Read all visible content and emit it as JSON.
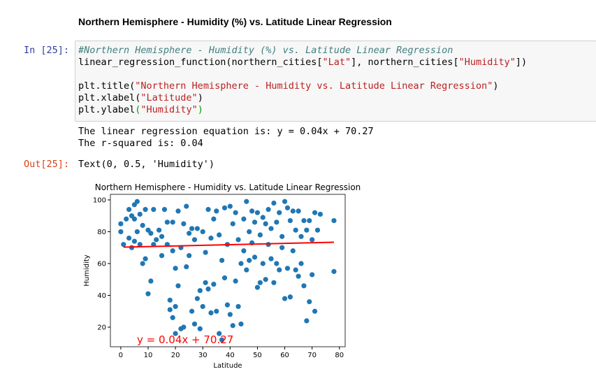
{
  "heading": "Northern Hemisphere - Humidity (%) vs. Latitude Linear Regression",
  "input_prompt": "In [25]:",
  "code": [
    [
      {
        "t": "#Northern Hemisphere - Humidity (%) vs. Latitude Linear Regression",
        "c": "#408080",
        "italic": true
      }
    ],
    [
      {
        "t": "linear_regression_function(northern_cities[",
        "c": "#000000"
      },
      {
        "t": "\"Lat\"",
        "c": "#BA2121"
      },
      {
        "t": "], northern_cities[",
        "c": "#000000"
      },
      {
        "t": "\"Humidity\"",
        "c": "#BA2121"
      },
      {
        "t": "])",
        "c": "#000000"
      }
    ],
    [],
    [
      {
        "t": "plt.title(",
        "c": "#000000"
      },
      {
        "t": "\"Northern Hemisphere - Humidity vs. Latitude Linear Regression\"",
        "c": "#BA2121"
      },
      {
        "t": ")",
        "c": "#000000"
      }
    ],
    [
      {
        "t": "plt.xlabel(",
        "c": "#000000"
      },
      {
        "t": "\"Latitude\"",
        "c": "#BA2121"
      },
      {
        "t": ")",
        "c": "#000000"
      }
    ],
    [
      {
        "t": "plt.ylabel",
        "c": "#000000"
      },
      {
        "t": "(",
        "c": "#00a000"
      },
      {
        "t": "\"Humidity\"",
        "c": "#BA2121"
      },
      {
        "t": ")",
        "c": "#00a000"
      }
    ]
  ],
  "stdout": [
    "The linear regression equation is: y = 0.04x + 70.27",
    "The r-squared is: 0.04"
  ],
  "output_prompt": "Out[25]:",
  "output_text": "Text(0, 0.5, 'Humidity')",
  "chart_data": {
    "type": "scatter",
    "title": "Northern Hemisphere - Humidity vs. Latitude Linear Regression",
    "x_label": "Latitude",
    "y_label": "Humidity",
    "color": "#1f77b4",
    "xlim": [
      -3.8,
      82.1
    ],
    "ylim": [
      7.7,
      103.5
    ],
    "xticks": [
      0,
      10,
      20,
      30,
      40,
      50,
      60,
      70,
      80
    ],
    "yticks": [
      20,
      40,
      60,
      80,
      100
    ],
    "x": [
      0,
      0,
      1,
      2,
      3,
      3,
      4,
      4,
      5,
      5,
      5,
      6,
      6,
      7,
      7,
      8,
      8,
      9,
      9,
      10,
      10,
      11,
      11,
      12,
      12,
      13,
      14,
      15,
      15,
      16,
      17,
      17,
      18,
      18,
      19,
      19,
      19,
      20,
      20,
      20,
      21,
      21,
      22,
      22,
      23,
      23,
      24,
      24,
      25,
      25,
      26,
      26,
      27,
      27,
      28,
      28,
      29,
      29,
      30,
      30,
      31,
      31,
      32,
      32,
      33,
      33,
      34,
      34,
      35,
      35,
      36,
      36,
      37,
      37,
      38,
      38,
      39,
      39,
      40,
      40,
      41,
      41,
      42,
      42,
      43,
      43,
      44,
      44,
      45,
      45,
      46,
      46,
      47,
      47,
      48,
      48,
      49,
      49,
      50,
      50,
      51,
      51,
      52,
      52,
      53,
      53,
      54,
      54,
      55,
      55,
      56,
      56,
      57,
      57,
      58,
      58,
      59,
      59,
      60,
      60,
      61,
      61,
      62,
      62,
      63,
      63,
      64,
      64,
      65,
      65,
      66,
      66,
      67,
      67,
      68,
      68,
      69,
      69,
      70,
      70,
      71,
      71,
      72,
      73,
      78,
      78
    ],
    "values": [
      85,
      80,
      72,
      88,
      94,
      76,
      90,
      70,
      97,
      88,
      74,
      99,
      80,
      91,
      72,
      60,
      84,
      63,
      94,
      41,
      81,
      49,
      79,
      94,
      72,
      75,
      81,
      65,
      77,
      94,
      86,
      72,
      37,
      31,
      26,
      68,
      86,
      16,
      33,
      57,
      46,
      93,
      70,
      19,
      20,
      85,
      96,
      58,
      79,
      65,
      82,
      30,
      75,
      22,
      82,
      38,
      43,
      19,
      80,
      33,
      67,
      48,
      94,
      44,
      76,
      29,
      88,
      47,
      93,
      30,
      78,
      16,
      62,
      12,
      95,
      51,
      72,
      34,
      96,
      28,
      85,
      21,
      92,
      49,
      75,
      33,
      60,
      22,
      88,
      68,
      99,
      56,
      62,
      80,
      93,
      73,
      64,
      86,
      92,
      45,
      78,
      48,
      89,
      60,
      85,
      50,
      94,
      72,
      63,
      82,
      98,
      48,
      86,
      60,
      92,
      56,
      77,
      70,
      99,
      38,
      95,
      57,
      87,
      39,
      93,
      68,
      81,
      56,
      93,
      52,
      77,
      60,
      87,
      46,
      81,
      24,
      87,
      36,
      75,
      53,
      92,
      30,
      81,
      91,
      87,
      55
    ],
    "regression": {
      "x": [
        1,
        78
      ],
      "values": [
        70.31,
        73.39
      ],
      "color": "#ff0000"
    },
    "annotation": "y = 0.04x + 70.27"
  }
}
